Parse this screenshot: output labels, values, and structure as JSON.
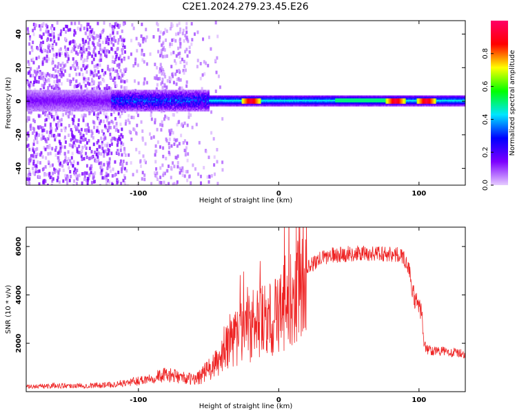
{
  "title": "C2E1.2024.279.23.45.E26",
  "chart_data": [
    {
      "type": "heatmap",
      "xlabel": "Height of straight line (km)",
      "ylabel": "Frequency (Hz)",
      "xlim": [
        -180,
        133
      ],
      "ylim": [
        -50,
        48
      ],
      "x_ticks": [
        -100,
        0,
        100
      ],
      "y_ticks": [
        -40,
        -20,
        0,
        20,
        40
      ],
      "colorbar": {
        "label": "Normalized spectral amplitude",
        "range": [
          0,
          1
        ],
        "ticks": [
          "0.0",
          "0.2",
          "0.4",
          "0.6",
          "0.8"
        ],
        "colors": [
          "#e6ccff",
          "#7d00ff",
          "#0000ff",
          "#00e6ff",
          "#00ff00",
          "#ffff00",
          "#ff0000",
          "#ff0066"
        ]
      },
      "features": {
        "tone_center_hz": 0,
        "tone_halfwidth_hz": 3,
        "broadband_noise_x_range": [
          -180,
          -55
        ],
        "tone_strong_peaks_x": [
          -20,
          83,
          105
        ]
      }
    },
    {
      "type": "line",
      "xlabel": "Height of straight line (km)",
      "ylabel": "SNR (10 * v/v)",
      "xlim": [
        -180,
        133
      ],
      "ylim": [
        0,
        6800
      ],
      "x_ticks": [
        -100,
        0,
        100
      ],
      "y_ticks": [
        2000,
        4000,
        6000
      ],
      "color": "#ee2222",
      "series": [
        {
          "x": [
            -180,
            -160,
            -140,
            -120,
            -110,
            -100,
            -90,
            -80,
            -70,
            -60,
            -55,
            -50,
            -45,
            -40,
            -35,
            -30,
            -25,
            -20,
            -15,
            -10,
            -5,
            0,
            5,
            10,
            15,
            20,
            25,
            30,
            35,
            40,
            50,
            60,
            70,
            80,
            88,
            90,
            93,
            95,
            97,
            100,
            102,
            103,
            105,
            110,
            120,
            133
          ],
          "values": [
            200,
            250,
            250,
            280,
            350,
            450,
            600,
            700,
            600,
            500,
            700,
            900,
            1100,
            1500,
            2000,
            2300,
            2500,
            2700,
            2800,
            2900,
            3000,
            3200,
            3700,
            4300,
            4800,
            5100,
            5300,
            5500,
            5600,
            5650,
            5700,
            5700,
            5700,
            5700,
            5600,
            5450,
            5100,
            4200,
            3800,
            3500,
            3300,
            2200,
            1750,
            1700,
            1650,
            1550
          ]
        }
      ]
    }
  ]
}
